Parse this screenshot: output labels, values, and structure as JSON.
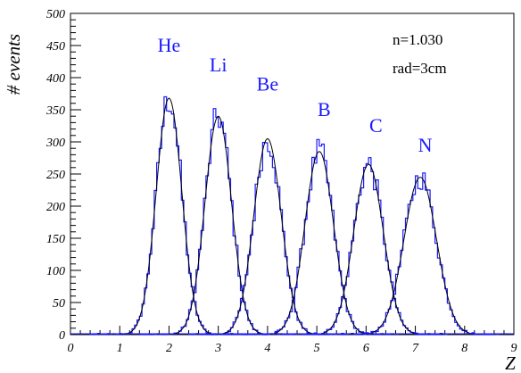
{
  "chart_data": {
    "type": "histogram",
    "title": "",
    "xlabel": "Z",
    "ylabel": "# events",
    "xlim": [
      0,
      9
    ],
    "ylim": [
      0,
      500
    ],
    "x_ticks": [
      "0",
      "1",
      "2",
      "3",
      "4",
      "5",
      "6",
      "7",
      "8",
      "9"
    ],
    "y_ticks": [
      "0",
      "50",
      "100",
      "150",
      "200",
      "250",
      "300",
      "350",
      "400",
      "450",
      "500"
    ],
    "annotations": [
      "n=1.030",
      "rad=3cm"
    ],
    "histogram_color": "#1a1aff",
    "fit_color": "#000000",
    "series": [
      {
        "name": "He",
        "mean": 2.0,
        "sigma": 0.26,
        "peak": 368
      },
      {
        "name": "Li",
        "mean": 3.0,
        "sigma": 0.27,
        "peak": 340
      },
      {
        "name": "Be",
        "mean": 4.0,
        "sigma": 0.28,
        "peak": 305
      },
      {
        "name": "B",
        "mean": 5.05,
        "sigma": 0.29,
        "peak": 285
      },
      {
        "name": "C",
        "mean": 6.05,
        "sigma": 0.3,
        "peak": 265
      },
      {
        "name": "N",
        "mean": 7.1,
        "sigma": 0.33,
        "peak": 245
      }
    ],
    "peak_labels": [
      {
        "text": "He",
        "x": 2.0,
        "y": 440
      },
      {
        "text": "Li",
        "x": 3.0,
        "y": 410
      },
      {
        "text": "Be",
        "x": 4.0,
        "y": 380
      },
      {
        "text": "B",
        "x": 5.15,
        "y": 340
      },
      {
        "text": "C",
        "x": 6.2,
        "y": 315
      },
      {
        "text": "N",
        "x": 7.2,
        "y": 285
      }
    ]
  }
}
